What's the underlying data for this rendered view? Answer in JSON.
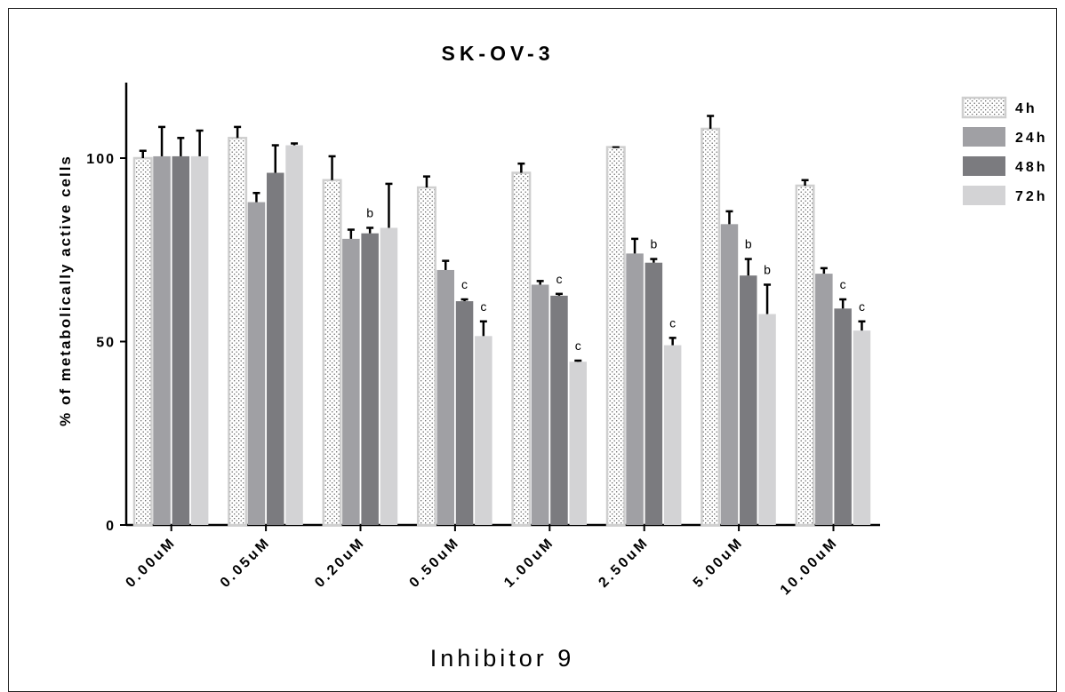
{
  "chart_data": {
    "type": "bar",
    "title": "SK-OV-3",
    "xlabel": "Inhibitor 9",
    "ylabel": "% of metabolically active cells",
    "ylim": [
      0,
      120
    ],
    "yticks": [
      "0",
      "50",
      "100"
    ],
    "grid": false,
    "legend_position": "right",
    "categories": [
      "0.00uM",
      "0.05uM",
      "0.20uM",
      "0.50uM",
      "1.00uM",
      "2.50uM",
      "5.00uM",
      "10.00uM"
    ],
    "series": [
      {
        "name": "4h",
        "color": "#ffffff",
        "pattern": "dots",
        "values": [
          100,
          105.5,
          94,
          92,
          96,
          103,
          108,
          92.5
        ],
        "errors": [
          2,
          3,
          6.5,
          3,
          2.5,
          0,
          3.5,
          1.5
        ],
        "labels": [
          "",
          "",
          "",
          "",
          "",
          "",
          "",
          ""
        ]
      },
      {
        "name": "24h",
        "color": "#a0a0a4",
        "values": [
          100.5,
          88,
          78,
          69.5,
          65.5,
          74,
          82,
          68.5
        ],
        "errors": [
          8,
          2.5,
          2.5,
          2.5,
          1,
          4,
          3.5,
          1.5
        ],
        "labels": [
          "",
          "",
          "",
          "",
          "",
          "",
          "",
          ""
        ]
      },
      {
        "name": "48h",
        "color": "#7b7b7f",
        "values": [
          100.5,
          96,
          79.5,
          61,
          62.5,
          71.5,
          68,
          59
        ],
        "errors": [
          5,
          7.5,
          1.5,
          0.5,
          0.5,
          1,
          4.5,
          2.5
        ],
        "labels": [
          "",
          "",
          "b",
          "c",
          "c",
          "b",
          "b",
          "c"
        ]
      },
      {
        "name": "72h",
        "color": "#d3d3d5",
        "values": [
          100.5,
          103.5,
          81,
          51.5,
          44.5,
          49,
          57.5,
          53
        ],
        "errors": [
          7,
          0.5,
          12,
          4,
          0.3,
          2,
          8,
          2.5
        ],
        "labels": [
          "",
          "",
          "",
          "c",
          "c",
          "c",
          "b",
          "c"
        ]
      }
    ]
  }
}
